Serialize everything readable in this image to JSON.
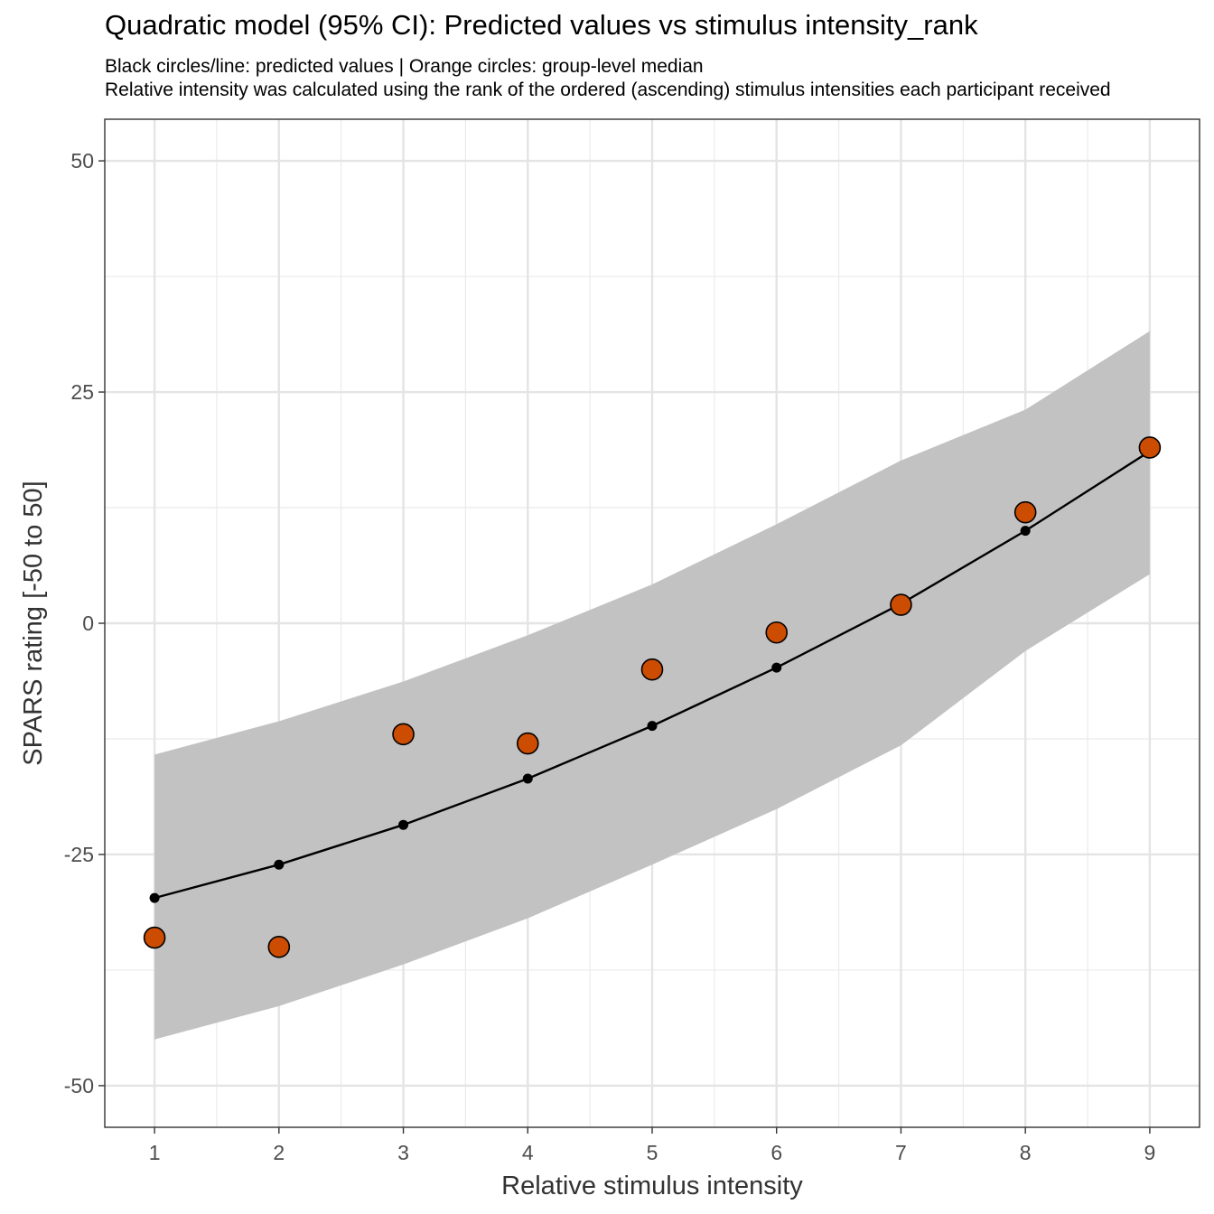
{
  "chart_data": {
    "type": "line",
    "title": "Quadratic model (95% CI): Predicted values vs stimulus intensity_rank",
    "subtitle_lines": [
      "Black circles/line: predicted values | Orange circles: group-level median",
      "Relative intensity was calculated using the rank of the ordered (ascending) stimulus intensities each participant received"
    ],
    "xlabel": "Relative stimulus intensity",
    "ylabel": "SPARS rating [-50 to 50]",
    "xlim": [
      0.6,
      9.4
    ],
    "ylim": [
      -54.5,
      54.5
    ],
    "x_ticks": [
      1,
      2,
      3,
      4,
      5,
      6,
      7,
      8,
      9
    ],
    "y_ticks": [
      -50,
      -25,
      0,
      25,
      50
    ],
    "y_tick_labels": [
      "-50",
      "-25",
      "0",
      "25",
      "50"
    ],
    "grid": true,
    "x": [
      1,
      2,
      3,
      4,
      5,
      6,
      7,
      8,
      9
    ],
    "series": [
      {
        "name": "predicted values",
        "style": "line+points",
        "color": "#000000",
        "values": [
          -29.7,
          -26.1,
          -21.8,
          -16.8,
          -11.1,
          -4.8,
          2.1,
          10.0,
          18.6
        ]
      },
      {
        "name": "group-level median",
        "style": "points",
        "color": "#CC4C02",
        "values": [
          -34,
          -35,
          -12,
          -13,
          -5,
          -1,
          2,
          12,
          19
        ]
      }
    ],
    "ci_band": {
      "name": "95% CI",
      "color": "#C2C2C2",
      "lower": [
        -45.0,
        -41.4,
        -36.9,
        -31.9,
        -26.1,
        -20.1,
        -13.2,
        -3.0,
        5.3
      ],
      "upper": [
        -14.2,
        -10.6,
        -6.3,
        -1.3,
        4.2,
        10.7,
        17.6,
        23.1,
        31.6
      ]
    }
  }
}
